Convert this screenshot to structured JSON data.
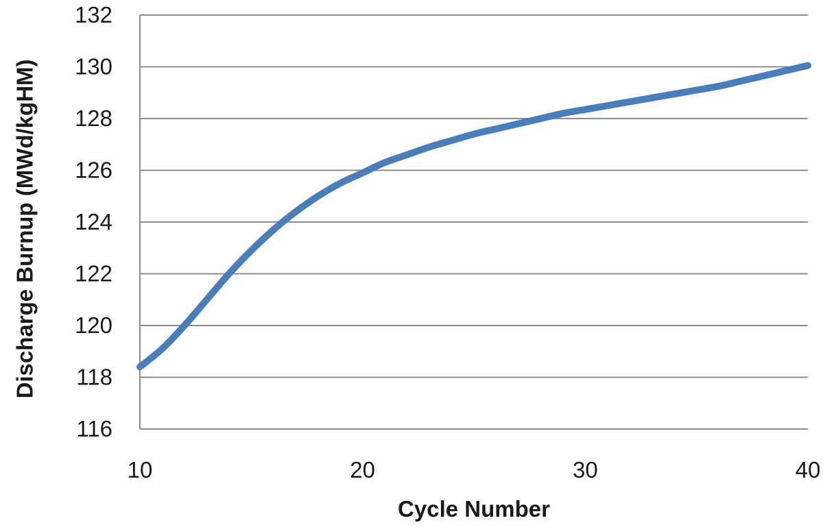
{
  "chart_data": {
    "type": "line",
    "title": "",
    "xlabel": "Cycle Number",
    "ylabel": "Discharge Burnup (MWd/kgHM)",
    "xlim": [
      10,
      40
    ],
    "ylim": [
      116,
      132
    ],
    "x_ticks": [
      10,
      20,
      30,
      40
    ],
    "y_ticks": [
      116,
      118,
      120,
      122,
      124,
      126,
      128,
      130,
      132
    ],
    "grid": "horizontal",
    "legend": "none",
    "series": [
      {
        "color": "#4a7ebb",
        "x": [
          10,
          11,
          12,
          13,
          14,
          15,
          16,
          17,
          18,
          19,
          20,
          21,
          22,
          23,
          24,
          25,
          26,
          27,
          28,
          29,
          30,
          31,
          32,
          33,
          34,
          35,
          36,
          37,
          38,
          39,
          40
        ],
        "y": [
          118.4,
          119.1,
          120.0,
          121.0,
          122.0,
          122.9,
          123.7,
          124.4,
          125.0,
          125.5,
          125.9,
          126.3,
          126.6,
          126.9,
          127.15,
          127.4,
          127.6,
          127.8,
          128.0,
          128.2,
          128.35,
          128.5,
          128.65,
          128.8,
          128.95,
          129.1,
          129.25,
          129.45,
          129.65,
          129.85,
          130.05
        ]
      }
    ]
  }
}
